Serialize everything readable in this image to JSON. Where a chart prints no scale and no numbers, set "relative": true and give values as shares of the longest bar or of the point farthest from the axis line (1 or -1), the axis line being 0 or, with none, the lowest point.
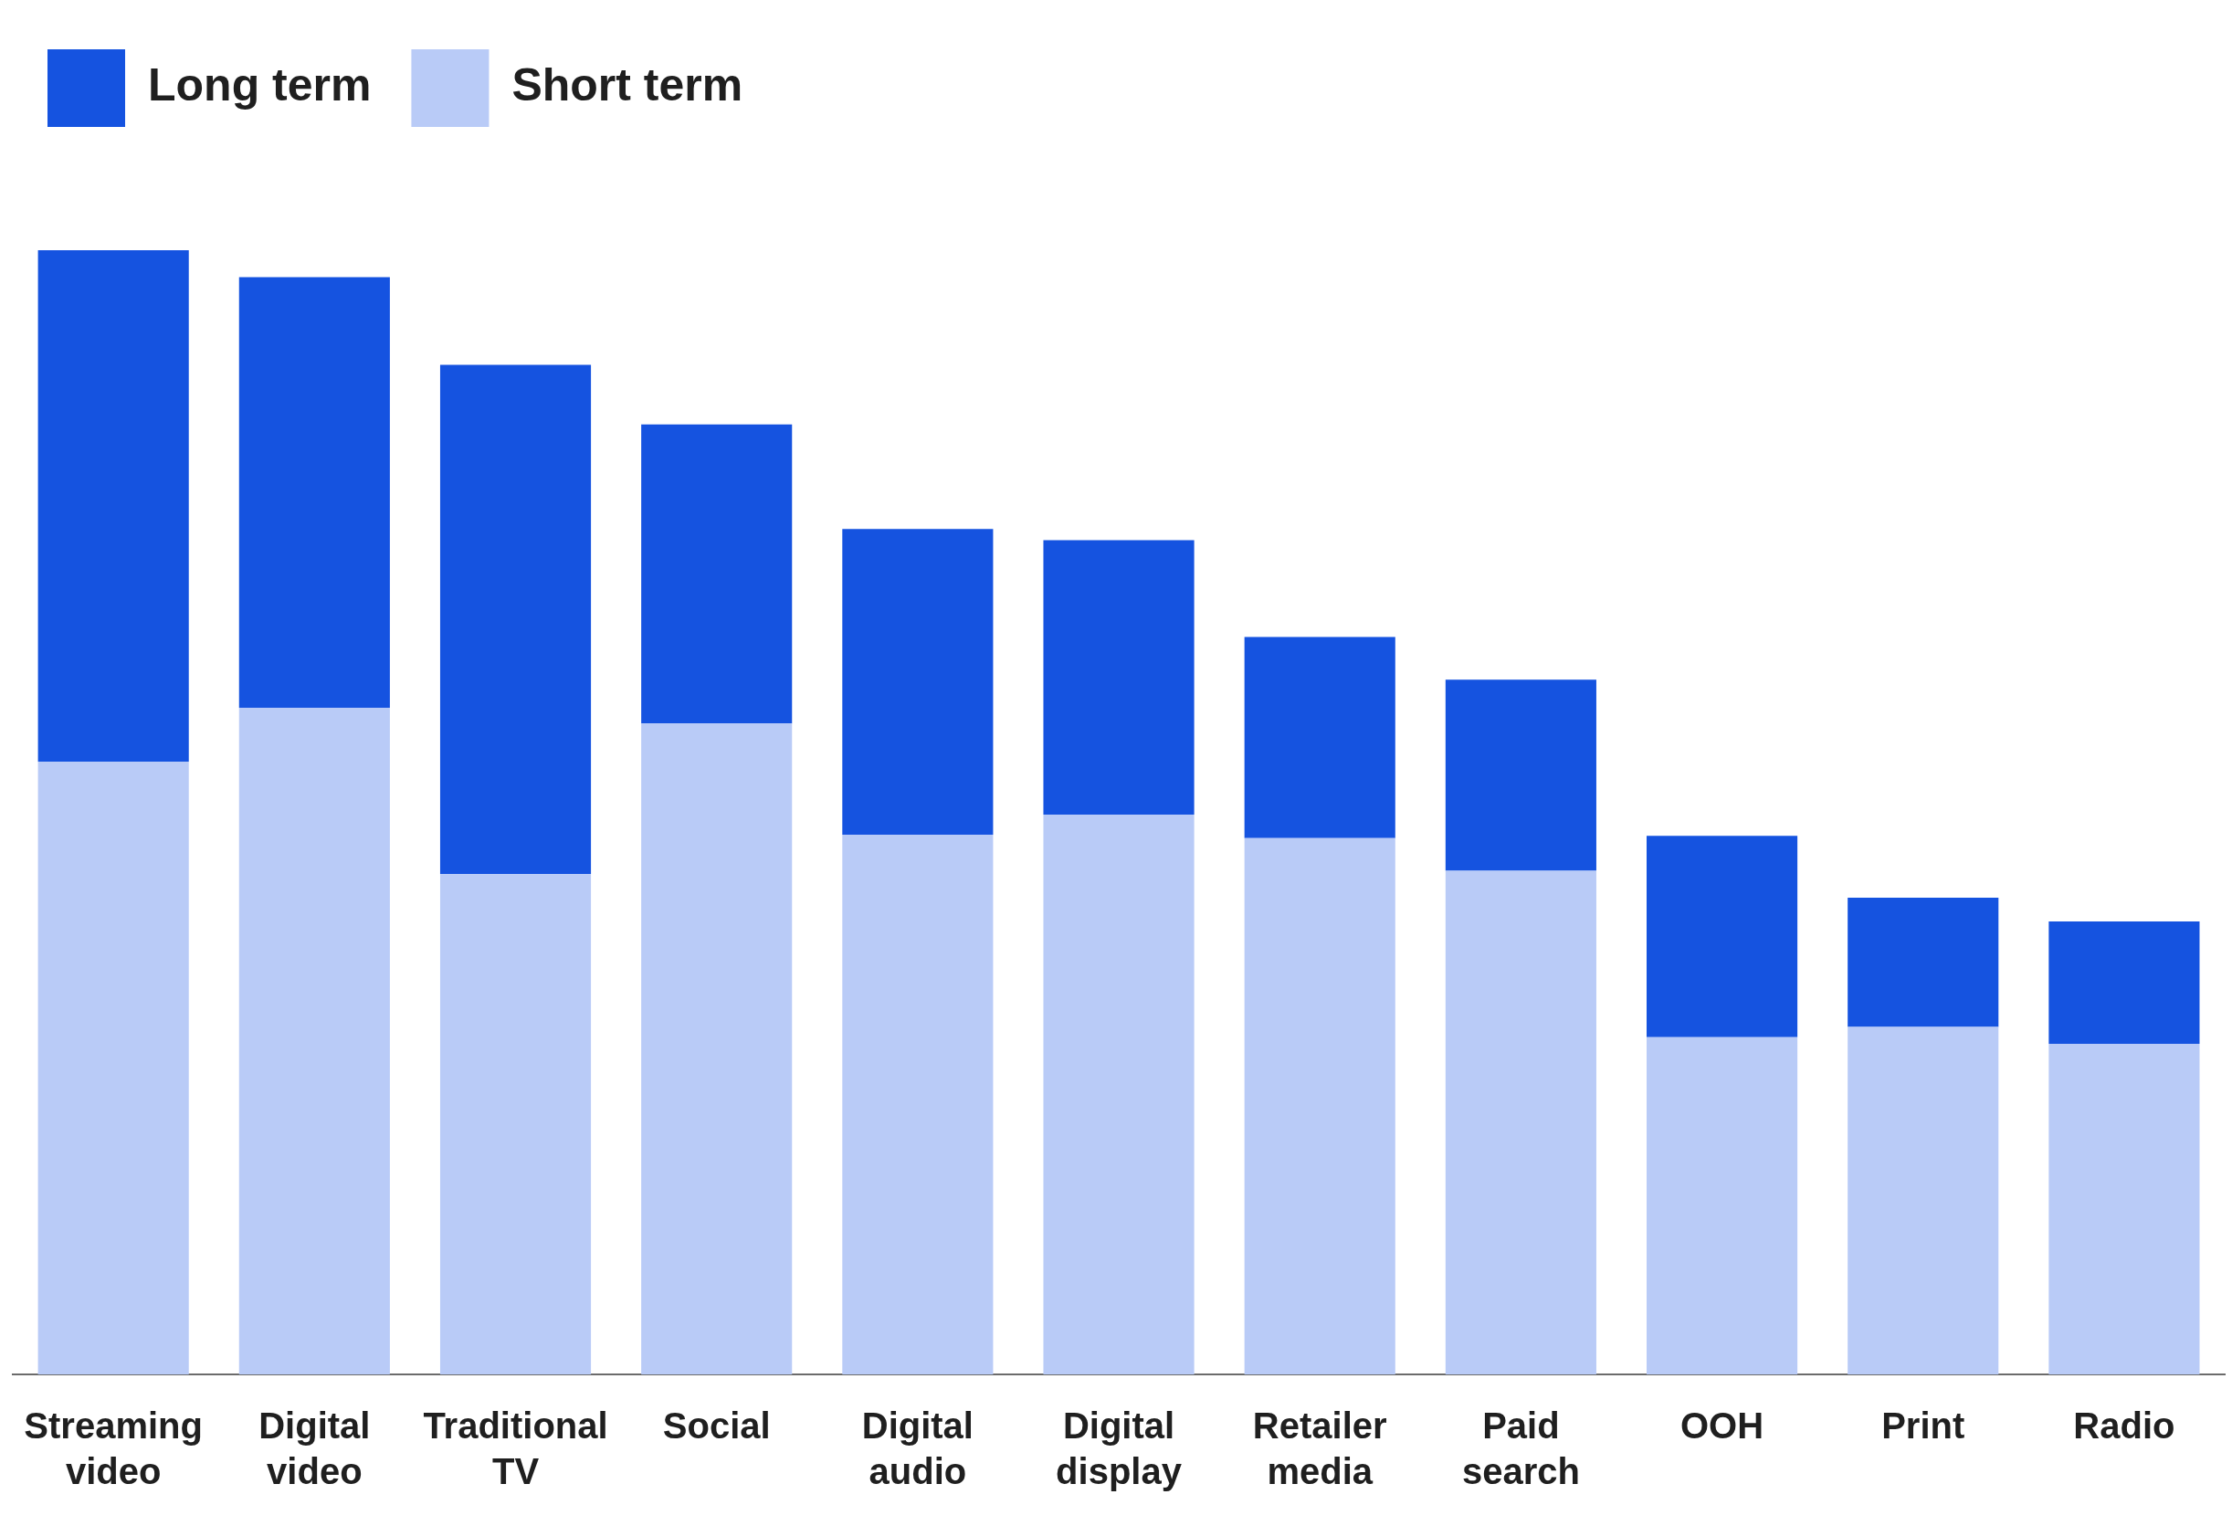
{
  "chart_data": {
    "type": "bar",
    "stacked": true,
    "relative": true,
    "legend": "top left",
    "grid": false,
    "categories": [
      "Streaming video",
      "Digital video",
      "Traditional TV",
      "Social",
      "Digital audio",
      "Digital display",
      "Retailer media",
      "Paid search",
      "OOH",
      "Print",
      "Radio"
    ],
    "series": [
      {
        "name": "Short term",
        "color": "#b9cbf7",
        "values": [
          0.545,
          0.593,
          0.445,
          0.579,
          0.48,
          0.498,
          0.477,
          0.448,
          0.3,
          0.309,
          0.294
        ]
      },
      {
        "name": "Long term",
        "color": "#1553e0",
        "values": [
          0.455,
          0.383,
          0.453,
          0.266,
          0.272,
          0.244,
          0.179,
          0.17,
          0.179,
          0.115,
          0.109
        ]
      }
    ]
  }
}
